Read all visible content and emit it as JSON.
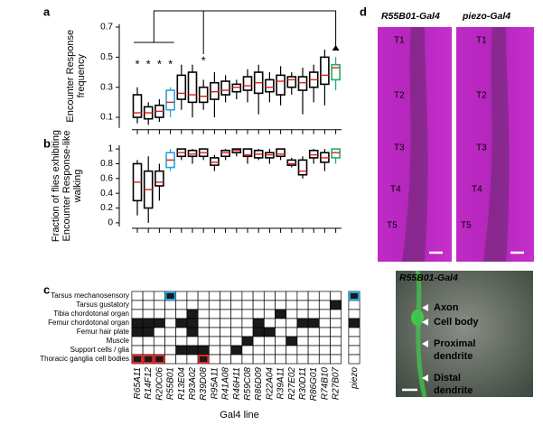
{
  "panels": {
    "a": "a",
    "b": "b",
    "c": "c",
    "d": "d"
  },
  "chart_data": [
    {
      "type": "box",
      "y_label": [
        "Encounter Response",
        "frequency"
      ],
      "ylim": [
        0.03,
        0.72
      ],
      "yticks": [
        0.1,
        0.3,
        0.5,
        0.7
      ],
      "median_color": "#e0201b",
      "annotations": [
        "*",
        "*",
        "*",
        "*",
        "*"
      ],
      "box_colors": [
        "#000000",
        "#000000",
        "#000000",
        "#29a3dc",
        "#000000",
        "#000000",
        "#000000",
        "#000000",
        "#000000",
        "#000000",
        "#000000",
        "#000000",
        "#000000",
        "#000000",
        "#000000",
        "#000000",
        "#000000",
        "#000000",
        "#1fae6b"
      ],
      "boxes": [
        [
          0.06,
          0.1,
          0.13,
          0.25,
          0.3
        ],
        [
          0.05,
          0.09,
          0.13,
          0.17,
          0.2
        ],
        [
          0.07,
          0.1,
          0.14,
          0.18,
          0.22
        ],
        [
          0.1,
          0.15,
          0.2,
          0.28,
          0.3
        ],
        [
          0.15,
          0.22,
          0.26,
          0.38,
          0.45
        ],
        [
          0.1,
          0.2,
          0.25,
          0.4,
          0.45
        ],
        [
          0.15,
          0.2,
          0.24,
          0.3,
          0.35
        ],
        [
          0.1,
          0.22,
          0.27,
          0.33,
          0.4
        ],
        [
          0.2,
          0.25,
          0.28,
          0.34,
          0.38
        ],
        [
          0.22,
          0.27,
          0.3,
          0.32,
          0.35
        ],
        [
          0.2,
          0.28,
          0.31,
          0.37,
          0.42
        ],
        [
          0.12,
          0.26,
          0.33,
          0.4,
          0.45
        ],
        [
          0.2,
          0.27,
          0.3,
          0.35,
          0.4
        ],
        [
          0.18,
          0.25,
          0.34,
          0.38,
          0.44
        ],
        [
          0.25,
          0.3,
          0.35,
          0.37,
          0.4
        ],
        [
          0.12,
          0.28,
          0.33,
          0.37,
          0.43
        ],
        [
          0.2,
          0.3,
          0.35,
          0.4,
          0.45
        ],
        [
          0.18,
          0.32,
          0.38,
          0.5,
          0.55
        ],
        [
          0.28,
          0.35,
          0.43,
          0.45,
          0.5
        ]
      ]
    },
    {
      "type": "box",
      "y_label": [
        "Fraction of flies exhibiting",
        "Encounter Response-like",
        "walking"
      ],
      "ylim": [
        -0.05,
        1.05
      ],
      "yticks": [
        0,
        0.2,
        0.4,
        0.6,
        0.8,
        1
      ],
      "median_color": "#e0201b",
      "box_colors": [
        "#000000",
        "#000000",
        "#000000",
        "#29a3dc",
        "#000000",
        "#000000",
        "#000000",
        "#000000",
        "#000000",
        "#000000",
        "#000000",
        "#000000",
        "#000000",
        "#000000",
        "#000000",
        "#000000",
        "#000000",
        "#000000",
        "#1fae6b"
      ],
      "boxes": [
        [
          0.1,
          0.3,
          0.55,
          0.8,
          0.85
        ],
        [
          0,
          0.2,
          0.45,
          0.7,
          0.9
        ],
        [
          0.3,
          0.5,
          0.55,
          0.7,
          0.8
        ],
        [
          0.7,
          0.75,
          0.85,
          0.95,
          1
        ],
        [
          0.85,
          0.9,
          0.95,
          1,
          1
        ],
        [
          0.8,
          0.9,
          0.93,
          0.98,
          1
        ],
        [
          0.85,
          0.9,
          0.95,
          1,
          1
        ],
        [
          0.7,
          0.78,
          0.82,
          0.88,
          0.92
        ],
        [
          0.85,
          0.9,
          0.95,
          0.98,
          1
        ],
        [
          0.9,
          0.95,
          0.98,
          1,
          1
        ],
        [
          0.8,
          0.9,
          0.92,
          1,
          1
        ],
        [
          0.85,
          0.88,
          0.93,
          0.98,
          1
        ],
        [
          0.8,
          0.88,
          0.92,
          0.95,
          1
        ],
        [
          0.85,
          0.9,
          0.93,
          1,
          1
        ],
        [
          0.75,
          0.78,
          0.8,
          0.85,
          0.88
        ],
        [
          0.6,
          0.65,
          0.7,
          0.85,
          0.9
        ],
        [
          0.8,
          0.88,
          0.92,
          0.98,
          1
        ],
        [
          0.7,
          0.82,
          0.88,
          0.95,
          1
        ],
        [
          0.8,
          0.88,
          0.95,
          1,
          1
        ]
      ]
    }
  ],
  "matrix": {
    "x_label": "Gal4 line",
    "columns": [
      "R65A11",
      "R14F12",
      "R20C06",
      "R55B01",
      "R13E04",
      "R93A02",
      "R39D08",
      "R95A11",
      "R41A08",
      "R46H11",
      "R59C08",
      "R86D09",
      "R22A04",
      "R39A11",
      "R27E02",
      "R30D11",
      "R86G01",
      "R74B10",
      "R27B07",
      "piezo"
    ],
    "column_colors": [
      "#000000",
      "#000000",
      "#000000",
      "#29a3dc",
      "#000000",
      "#000000",
      "#000000",
      "#000000",
      "#000000",
      "#000000",
      "#000000",
      "#000000",
      "#000000",
      "#000000",
      "#000000",
      "#000000",
      "#000000",
      "#000000",
      "#1fae6b",
      "#000000"
    ],
    "rows": [
      "Tarsus mechanosensory",
      "Tarsus gustatory",
      "Tibia chordotonal organ",
      "Femur chordotonal organ",
      "Femur hair plate",
      "Muscle",
      "Support cells / glia",
      "Thoracic ganglia cell bodies"
    ],
    "cells": [
      [
        0,
        0,
        0,
        1,
        0,
        0,
        0,
        0,
        0,
        0,
        0,
        0,
        0,
        0,
        0,
        0,
        0,
        0,
        0,
        1
      ],
      [
        0,
        0,
        0,
        0,
        0,
        0,
        0,
        0,
        0,
        0,
        0,
        0,
        0,
        0,
        0,
        0,
        0,
        0,
        1,
        0
      ],
      [
        0,
        0,
        0,
        0,
        0,
        1,
        0,
        0,
        0,
        0,
        0,
        0,
        0,
        1,
        0,
        0,
        0,
        0,
        0,
        0
      ],
      [
        1,
        1,
        1,
        0,
        1,
        1,
        0,
        0,
        0,
        0,
        0,
        1,
        0,
        0,
        0,
        1,
        1,
        0,
        0,
        1
      ],
      [
        1,
        1,
        0,
        0,
        0,
        1,
        0,
        0,
        0,
        0,
        0,
        1,
        1,
        0,
        0,
        0,
        0,
        0,
        0,
        0
      ],
      [
        0,
        0,
        0,
        0,
        0,
        0,
        0,
        0,
        0,
        0,
        1,
        0,
        0,
        0,
        1,
        0,
        0,
        0,
        0,
        0
      ],
      [
        0,
        0,
        0,
        0,
        1,
        1,
        1,
        0,
        0,
        1,
        0,
        0,
        0,
        0,
        0,
        0,
        0,
        0,
        0,
        0
      ],
      [
        1,
        1,
        1,
        0,
        0,
        0,
        1,
        0,
        0,
        0,
        0,
        0,
        0,
        0,
        0,
        0,
        0,
        0,
        0,
        0
      ]
    ],
    "outlines": [
      {
        "row": 0,
        "col": 3,
        "color": "#29a3dc"
      },
      {
        "row": 0,
        "col": 19,
        "color": "#29a3dc"
      },
      {
        "row": 7,
        "col": 0,
        "color": "#d42a2a"
      },
      {
        "row": 7,
        "col": 1,
        "color": "#d42a2a"
      },
      {
        "row": 7,
        "col": 2,
        "color": "#d42a2a"
      },
      {
        "row": 7,
        "col": 6,
        "color": "#d42a2a"
      }
    ]
  },
  "images": {
    "left_title": "R55B01-Gal4",
    "right_title": "piezo-Gal4",
    "segments": [
      "T1",
      "T2",
      "T3",
      "T4",
      "T5"
    ],
    "inset_title": "R55B01-Gal4",
    "inset_labels": [
      "Axon",
      "Cell body",
      [
        "Proximal",
        "dendrite"
      ],
      [
        "Distal",
        "dendrite"
      ]
    ]
  }
}
